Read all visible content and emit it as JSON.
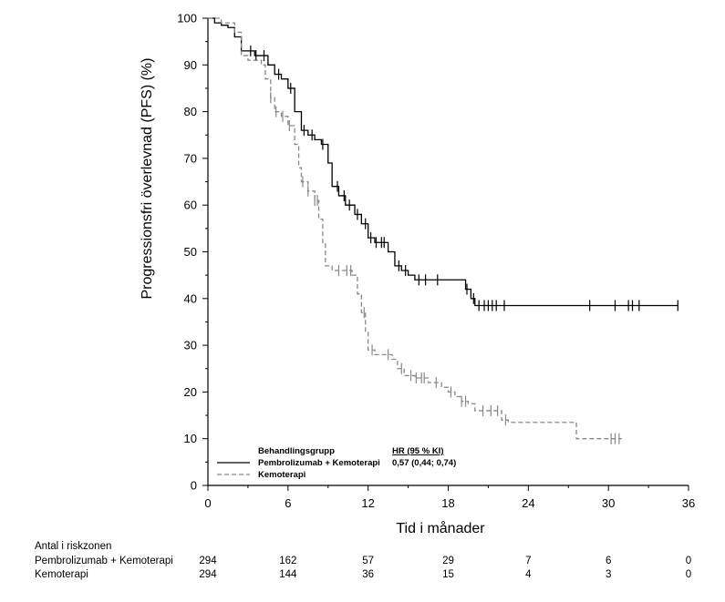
{
  "chart_data": {
    "type": "line",
    "title": "",
    "xlabel": "Tid i månader",
    "ylabel": "Progressionsfri överlevnad (PFS) (%)",
    "xlim": [
      0,
      36
    ],
    "ylim": [
      0,
      100
    ],
    "x_ticks": [
      0,
      6,
      12,
      18,
      24,
      30,
      36
    ],
    "y_ticks": [
      0,
      10,
      20,
      30,
      40,
      50,
      60,
      70,
      80,
      90,
      100
    ],
    "grid": false,
    "legend_position": "bottom-left",
    "legend": {
      "title": "Behandlingsgrupp",
      "hr_header": "HR (95 % KI)",
      "hr_value": "0,57 (0,44; 0,74)"
    },
    "series": [
      {
        "name": "Pembrolizumab + Kemoterapi",
        "style": "solid",
        "color": "#000000",
        "points": [
          [
            0,
            100
          ],
          [
            0.5,
            99
          ],
          [
            1,
            98.5
          ],
          [
            1.5,
            98
          ],
          [
            2,
            96
          ],
          [
            2.5,
            93
          ],
          [
            3.5,
            92
          ],
          [
            4.5,
            90
          ],
          [
            5,
            88
          ],
          [
            5.5,
            87
          ],
          [
            6,
            85
          ],
          [
            6.5,
            80
          ],
          [
            7,
            76
          ],
          [
            7.5,
            75
          ],
          [
            8,
            74
          ],
          [
            8.5,
            73
          ],
          [
            9,
            69
          ],
          [
            9.3,
            64
          ],
          [
            9.8,
            62
          ],
          [
            10.3,
            60
          ],
          [
            11,
            58
          ],
          [
            11.5,
            56
          ],
          [
            12,
            53
          ],
          [
            12.5,
            52
          ],
          [
            13.5,
            50
          ],
          [
            14,
            47
          ],
          [
            14.5,
            46
          ],
          [
            15,
            45
          ],
          [
            15.5,
            44
          ],
          [
            16.5,
            44
          ],
          [
            18,
            44
          ],
          [
            19,
            44
          ],
          [
            19.3,
            42
          ],
          [
            19.7,
            40
          ],
          [
            20,
            38.5
          ],
          [
            22,
            38.5
          ],
          [
            25,
            38.5
          ],
          [
            30,
            38.5
          ],
          [
            35.2,
            38.5
          ]
        ],
        "censors": [
          3.2,
          3.6,
          4.2,
          5.3,
          6.2,
          7.2,
          7.8,
          8.6,
          9.7,
          10.2,
          10.6,
          11.2,
          11.8,
          12.2,
          12.6,
          13.0,
          13.2,
          14.3,
          14.8,
          15.8,
          16.3,
          17.2,
          19.4,
          19.9,
          20.3,
          20.7,
          21.0,
          21.3,
          21.6,
          22.2,
          28.6,
          30.5,
          31.5,
          31.8,
          32.3,
          35.2
        ]
      },
      {
        "name": "Kemoterapi",
        "style": "dashed",
        "color": "#888888",
        "points": [
          [
            0,
            100
          ],
          [
            1,
            99
          ],
          [
            2,
            97
          ],
          [
            2.5,
            92
          ],
          [
            3,
            91
          ],
          [
            4,
            90
          ],
          [
            4.3,
            87
          ],
          [
            4.7,
            83
          ],
          [
            5,
            80
          ],
          [
            5.5,
            79
          ],
          [
            6,
            77
          ],
          [
            6.5,
            73
          ],
          [
            6.8,
            68
          ],
          [
            7,
            65
          ],
          [
            7.5,
            63
          ],
          [
            8,
            61
          ],
          [
            8.3,
            57
          ],
          [
            8.6,
            52
          ],
          [
            8.8,
            47
          ],
          [
            9.3,
            46
          ],
          [
            10,
            46
          ],
          [
            10.8,
            45
          ],
          [
            11.2,
            41
          ],
          [
            11.5,
            37
          ],
          [
            11.8,
            33
          ],
          [
            12,
            29
          ],
          [
            12.5,
            28
          ],
          [
            13,
            28
          ],
          [
            13.8,
            27
          ],
          [
            14.2,
            25
          ],
          [
            14.7,
            23.5
          ],
          [
            15.5,
            23
          ],
          [
            16.5,
            22
          ],
          [
            17.5,
            21
          ],
          [
            18,
            20
          ],
          [
            18.5,
            19
          ],
          [
            19,
            18
          ],
          [
            19.5,
            17.5
          ],
          [
            20,
            16
          ],
          [
            21,
            16
          ],
          [
            22,
            14
          ],
          [
            22.5,
            13.5
          ],
          [
            26,
            13.5
          ],
          [
            27.3,
            13.5
          ],
          [
            27.6,
            10
          ],
          [
            30,
            10
          ],
          [
            31,
            10
          ]
        ],
        "censors": [
          4.7,
          5.1,
          5.6,
          6.1,
          7.1,
          7.5,
          8.0,
          8.2,
          9.8,
          10.4,
          10.7,
          11.7,
          12.3,
          13.5,
          14.5,
          15.2,
          15.6,
          16.0,
          16.2,
          17.1,
          18.2,
          19.0,
          19.3,
          20.6,
          21.2,
          21.7,
          22.3,
          30.2,
          30.5,
          30.8
        ]
      }
    ]
  },
  "risk_table": {
    "header": "Antal i riskzonen",
    "rows": [
      {
        "label": "Pembrolizumab + Kemoterapi",
        "values": [
          "294",
          "162",
          "57",
          "29",
          "7",
          "6",
          "0"
        ]
      },
      {
        "label": "Kemoterapi",
        "values": [
          "294",
          "144",
          "36",
          "15",
          "4",
          "3",
          "0"
        ]
      }
    ]
  }
}
